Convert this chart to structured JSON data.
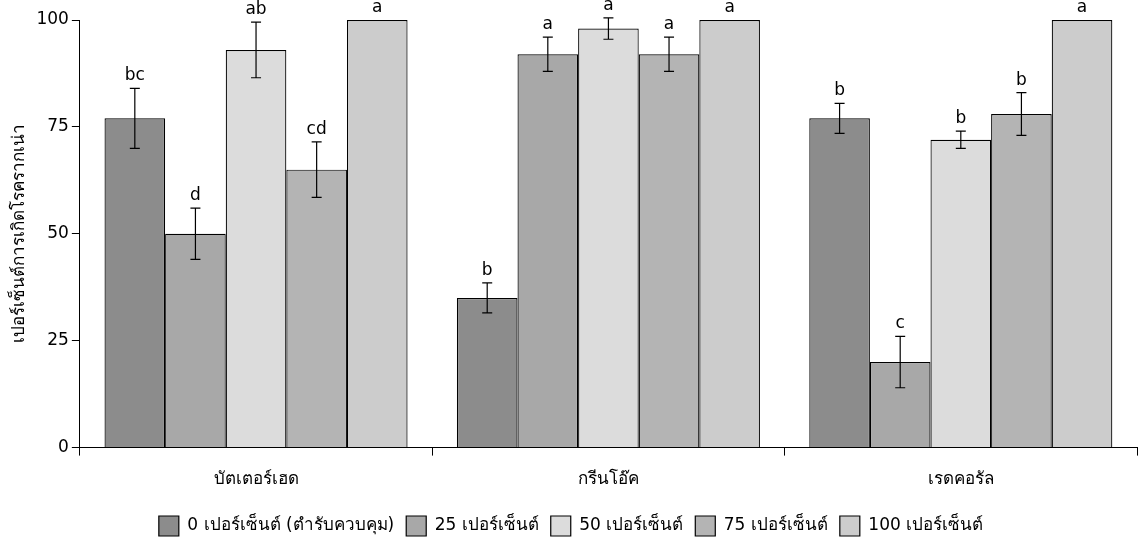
{
  "chart_data": {
    "type": "bar",
    "ylabel": "เปอร์เซ็นต์การเกิดโรครากเน่า",
    "categories": [
      "บัตเตอร์เฮด",
      "กรีนโอ๊ค",
      "เรดคอรัล"
    ],
    "series": [
      {
        "name": "0 เปอร์เซ็นต์ (ตำรับควบคุม)",
        "color": "#8c8c8c",
        "values": [
          77,
          35,
          77
        ],
        "errors": [
          7,
          3.5,
          3.5
        ],
        "value_labels": [
          "bc",
          "b",
          "b"
        ]
      },
      {
        "name": "25 เปอร์เซ็นต์",
        "color": "#a8a8a8",
        "values": [
          50,
          92,
          20
        ],
        "errors": [
          6,
          4,
          6
        ],
        "value_labels": [
          "d",
          "a",
          "c"
        ]
      },
      {
        "name": "50 เปอร์เซ็นต์",
        "color": "#dcdcdc",
        "values": [
          93,
          98,
          72
        ],
        "errors": [
          6.5,
          2.5,
          2
        ],
        "value_labels": [
          "ab",
          "a",
          "b"
        ]
      },
      {
        "name": "75 เปอร์เซ็นต์",
        "color": "#b4b4b4",
        "values": [
          65,
          92,
          78
        ],
        "errors": [
          6.5,
          4,
          5
        ],
        "value_labels": [
          "cd",
          "a",
          "b"
        ]
      },
      {
        "name": "100 เปอร์เซ็นต์",
        "color": "#cccccc",
        "values": [
          100,
          100,
          100
        ],
        "errors": [
          null,
          null,
          null
        ],
        "value_labels": [
          "a",
          "a",
          "a"
        ]
      }
    ],
    "ylim": [
      0,
      100
    ],
    "yticks": [
      0,
      25,
      50,
      75,
      100
    ],
    "grid": false,
    "legend": "bottom"
  }
}
